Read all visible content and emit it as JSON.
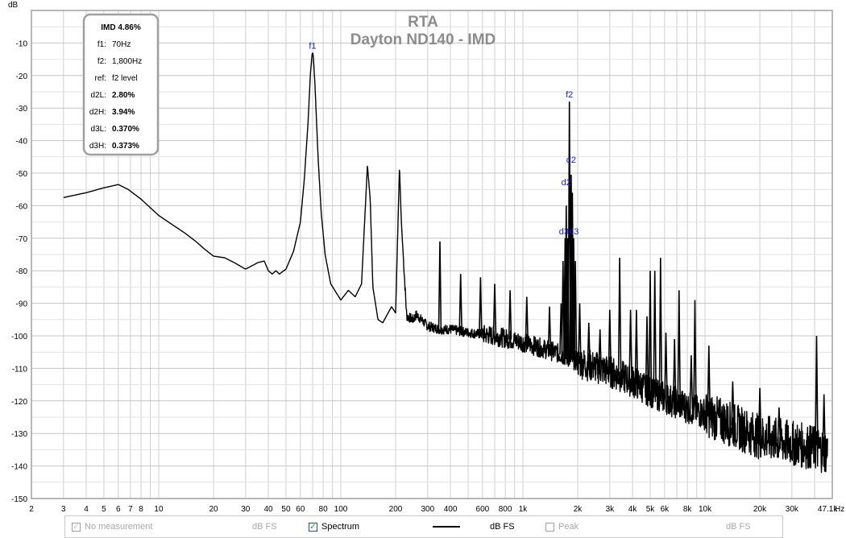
{
  "chart_data": {
    "type": "line",
    "title": "RTA",
    "subtitle": "Dayton ND140 - IMD",
    "ylabel": "dB",
    "xlabel": "Hz",
    "x_scale": "log",
    "xlim": [
      2,
      50000
    ],
    "ylim": [
      -150,
      0
    ],
    "grid": true,
    "y_ticks": [
      "-10",
      "-20",
      "-30",
      "-40",
      "-50",
      "-60",
      "-70",
      "-80",
      "-90",
      "-100",
      "-110",
      "-120",
      "-130",
      "-140",
      "-150"
    ],
    "x_tick_labels": [
      {
        "f": 2,
        "label": "2"
      },
      {
        "f": 3,
        "label": "3"
      },
      {
        "f": 4,
        "label": "4"
      },
      {
        "f": 5,
        "label": "5"
      },
      {
        "f": 6,
        "label": "6"
      },
      {
        "f": 7,
        "label": "7"
      },
      {
        "f": 8,
        "label": "8"
      },
      {
        "f": 10,
        "label": "10"
      },
      {
        "f": 20,
        "label": "20"
      },
      {
        "f": 30,
        "label": "30"
      },
      {
        "f": 40,
        "label": "40"
      },
      {
        "f": 50,
        "label": "50"
      },
      {
        "f": 60,
        "label": "60"
      },
      {
        "f": 80,
        "label": "80"
      },
      {
        "f": 100,
        "label": "100"
      },
      {
        "f": 200,
        "label": "200"
      },
      {
        "f": 300,
        "label": "300"
      },
      {
        "f": 400,
        "label": "400"
      },
      {
        "f": 600,
        "label": "600"
      },
      {
        "f": 800,
        "label": "800"
      },
      {
        "f": 1000,
        "label": "1k"
      },
      {
        "f": 2000,
        "label": "2k"
      },
      {
        "f": 3000,
        "label": "3k"
      },
      {
        "f": 4000,
        "label": "4k"
      },
      {
        "f": 5000,
        "label": "5k"
      },
      {
        "f": 6000,
        "label": "6k"
      },
      {
        "f": 8000,
        "label": "8k"
      },
      {
        "f": 10000,
        "label": "10k"
      },
      {
        "f": 20000,
        "label": "20k"
      },
      {
        "f": 30000,
        "label": "30k"
      },
      {
        "f": 47100,
        "label": "47.1k"
      }
    ],
    "series": [
      {
        "name": "Spectrum",
        "color": "#000000",
        "baseline": [
          [
            3,
            -57.5
          ],
          [
            4,
            -56
          ],
          [
            5,
            -54.5
          ],
          [
            6,
            -53.5
          ],
          [
            6.8,
            -55
          ],
          [
            8,
            -58
          ],
          [
            10,
            -63
          ],
          [
            12,
            -66
          ],
          [
            14,
            -68.5
          ],
          [
            16,
            -71
          ],
          [
            18,
            -73.5
          ],
          [
            20,
            -75.5
          ],
          [
            23,
            -76
          ],
          [
            26,
            -77.5
          ],
          [
            30,
            -79.5
          ],
          [
            35,
            -77.5
          ],
          [
            38,
            -77
          ],
          [
            40,
            -80
          ],
          [
            42,
            -81
          ],
          [
            44,
            -80
          ],
          [
            46,
            -81
          ],
          [
            50,
            -79.5
          ],
          [
            55,
            -74
          ],
          [
            60,
            -65
          ],
          [
            63,
            -52
          ],
          [
            66,
            -35
          ],
          [
            68,
            -20
          ],
          [
            69.5,
            -13.5
          ],
          [
            70,
            -13
          ],
          [
            70.5,
            -13.5
          ],
          [
            72,
            -22
          ],
          [
            75,
            -45
          ],
          [
            78,
            -62
          ],
          [
            82,
            -75
          ],
          [
            88,
            -84
          ],
          [
            95,
            -87
          ],
          [
            100,
            -89
          ],
          [
            110,
            -86
          ],
          [
            120,
            -88
          ],
          [
            130,
            -84
          ],
          [
            140,
            -47.5
          ],
          [
            145,
            -58
          ],
          [
            150,
            -85
          ],
          [
            160,
            -95
          ],
          [
            170,
            -96
          ],
          [
            190,
            -91
          ],
          [
            200,
            -93
          ],
          [
            210,
            -48
          ],
          [
            215,
            -65
          ],
          [
            230,
            -94
          ],
          [
            250,
            -95
          ],
          [
            260,
            -93.5
          ],
          [
            300,
            -97
          ],
          [
            350,
            -98
          ],
          [
            400,
            -98
          ],
          [
            500,
            -99
          ],
          [
            700,
            -100
          ],
          [
            1000,
            -102
          ],
          [
            1500,
            -105
          ],
          [
            2000,
            -108
          ],
          [
            3000,
            -111
          ],
          [
            4000,
            -114
          ],
          [
            5000,
            -117
          ],
          [
            6000,
            -119
          ],
          [
            8000,
            -122
          ],
          [
            10000,
            -124
          ],
          [
            15000,
            -128
          ],
          [
            20000,
            -131
          ],
          [
            30000,
            -133
          ],
          [
            40000,
            -134.5
          ],
          [
            47100,
            -135.5
          ]
        ],
        "peaks": [
          [
            350,
            -71
          ],
          [
            455,
            -81
          ],
          [
            585,
            -82
          ],
          [
            700,
            -84
          ],
          [
            850,
            -86
          ],
          [
            1050,
            -88
          ],
          [
            1400,
            -91
          ],
          [
            1620,
            -90
          ],
          [
            1660,
            -77
          ],
          [
            1705,
            -70
          ],
          [
            1730,
            -60
          ],
          [
            1765,
            -70
          ],
          [
            1800,
            -28
          ],
          [
            1840,
            -50.5
          ],
          [
            1870,
            -56
          ],
          [
            1900,
            -70
          ],
          [
            1940,
            -77
          ],
          [
            2050,
            -90
          ],
          [
            2300,
            -96
          ],
          [
            2650,
            -98
          ],
          [
            3000,
            -92
          ],
          [
            3400,
            -76
          ],
          [
            3900,
            -92
          ],
          [
            4200,
            -92
          ],
          [
            4800,
            -94
          ],
          [
            5000,
            -80
          ],
          [
            5300,
            -80
          ],
          [
            5700,
            -76
          ],
          [
            6100,
            -99
          ],
          [
            6800,
            -101
          ],
          [
            7200,
            -86
          ],
          [
            8400,
            -106
          ],
          [
            8800,
            -89
          ],
          [
            10500,
            -103
          ],
          [
            14200,
            -114
          ],
          [
            20000,
            -116
          ],
          [
            25500,
            -122
          ],
          [
            41000,
            -100
          ],
          [
            45000,
            -118
          ]
        ]
      }
    ],
    "markers": [
      {
        "label": "f1",
        "f": 70,
        "level": -13
      },
      {
        "label": "f2",
        "f": 1800,
        "level": -28
      },
      {
        "label": "d2",
        "f": 1730,
        "level": -55
      },
      {
        "label": "d2",
        "f": 1840,
        "level": -48
      },
      {
        "label": "d3",
        "f": 1680,
        "level": -70
      },
      {
        "label": "d3",
        "f": 1905,
        "level": -70
      }
    ],
    "info_box": {
      "title": "IMD 4.86%",
      "rows": [
        {
          "key": "f1:",
          "value": "70Hz",
          "bold": false
        },
        {
          "key": "f2:",
          "value": "1,800Hz",
          "bold": false
        },
        {
          "key": "ref:",
          "value": "f2 level",
          "bold": false
        },
        {
          "key": "d2L:",
          "value": "2.80%",
          "bold": true
        },
        {
          "key": "d2H:",
          "value": "3.94%",
          "bold": true
        },
        {
          "key": "d3L:",
          "value": "0.370%",
          "bold": true
        },
        {
          "key": "d3H:",
          "value": "0.373%",
          "bold": true
        }
      ]
    }
  },
  "legend": {
    "no_measurement": {
      "label": "No measurement",
      "unit": "dB FS",
      "checked": true,
      "enabled": false
    },
    "spectrum": {
      "label": "Spectrum",
      "unit": "dB FS",
      "checked": true,
      "enabled": true
    },
    "peak": {
      "label": "Peak",
      "unit": "dB FS",
      "checked": false,
      "enabled": false
    }
  },
  "colors": {
    "grid": "#c8c8c8",
    "marker_text": "#1a1acc",
    "title": "#8c8c8c",
    "frame": "#a0a0a0"
  }
}
